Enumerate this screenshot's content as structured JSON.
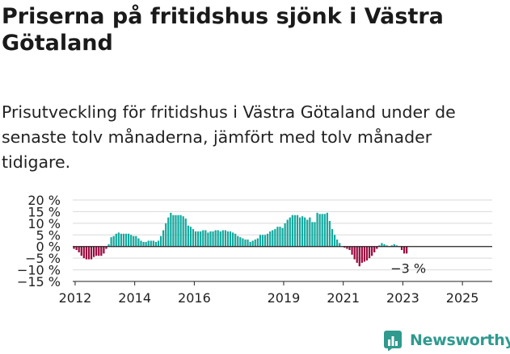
{
  "header": {
    "title": "Priserna på fritidshus sjönk i Västra Götaland",
    "subtitle": "Prisutveckling för fritidshus i Västra Götaland under de senaste tolv månaderna, jämfört med tolv månader tidigare."
  },
  "brand": {
    "name": "Newsworthy",
    "icon": "newsworthy-logo-icon",
    "color": "#2f9a8e"
  },
  "chart_data": {
    "type": "bar",
    "y_ticks": [
      "20 %",
      "15 %",
      "10 %",
      "5 %",
      "0 %",
      "−5 %",
      "−10 %",
      "−15 %"
    ],
    "y_tick_values": [
      20,
      15,
      10,
      5,
      0,
      -5,
      -10,
      -15
    ],
    "ylim": [
      -15,
      20
    ],
    "x_ticks": [
      {
        "label": "2012",
        "x": 2012.0
      },
      {
        "label": "2014",
        "x": 2014.0
      },
      {
        "label": "2016",
        "x": 2016.0
      },
      {
        "label": "2019",
        "x": 2019.0
      },
      {
        "label": "2021",
        "x": 2021.0
      },
      {
        "label": "2023",
        "x": 2023.0
      },
      {
        "label": "2025",
        "x": 2025.0
      }
    ],
    "x_start": 2011.92,
    "x_end": 2026.0,
    "annotation": {
      "text": "−3 %"
    },
    "grid": true,
    "legend": "none",
    "colors": {
      "positive": "#13a89e",
      "negative": "#99073e",
      "grid": "#d9d9d9",
      "zero_line": "#222222"
    },
    "values": [
      -1,
      -1.5,
      -2.5,
      -4,
      -5,
      -5.5,
      -5.5,
      -5.5,
      -4.5,
      -4,
      -4,
      -4,
      -3,
      -1,
      1,
      4,
      4.5,
      5.5,
      6,
      5.5,
      5.5,
      5.5,
      5.5,
      5,
      4.5,
      4.5,
      3.5,
      2.5,
      2,
      2,
      2.5,
      2.5,
      2.5,
      2,
      2.5,
      4.5,
      7,
      10,
      12.5,
      14.5,
      13.5,
      13.5,
      13.5,
      13.5,
      13,
      12,
      9,
      8.5,
      7.5,
      6.5,
      6.5,
      6.5,
      7,
      7,
      6,
      6.5,
      6.5,
      7,
      7,
      6.5,
      7,
      7,
      6.5,
      6.5,
      6,
      5.5,
      4.5,
      4,
      3.5,
      3,
      3,
      2,
      2.5,
      3,
      3.5,
      5,
      5,
      5,
      5.5,
      6.5,
      7,
      7.5,
      8.5,
      8.5,
      8,
      10,
      11.5,
      12.5,
      13.5,
      13.5,
      13.5,
      12.5,
      13,
      12.5,
      11.5,
      12.5,
      10.5,
      10.5,
      14.5,
      14,
      14,
      14,
      14.5,
      11,
      7.5,
      5,
      3,
      1.5,
      0,
      -0.5,
      -1,
      -1.5,
      -3.5,
      -5.5,
      -7,
      -8.5,
      -7,
      -6.5,
      -6,
      -5,
      -4,
      -2.5,
      -1,
      0.5,
      1.5,
      1,
      0.5,
      0,
      0.5,
      1,
      0.5,
      0,
      -1.5,
      -3,
      -3
    ]
  }
}
